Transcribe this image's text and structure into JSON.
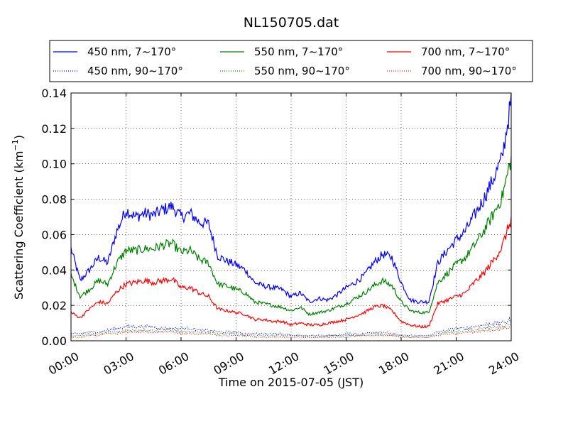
{
  "chart_data": {
    "type": "line",
    "title": "NL150705.dat",
    "xlabel": "Time on 2015-07-05 (JST)",
    "ylabel_main": "Scattering Coefficient (km",
    "ylabel_sup": "−1",
    "ylabel_end": ")",
    "xlim": [
      0,
      24
    ],
    "ylim": [
      0,
      0.14
    ],
    "grid": true,
    "legend_position": "top",
    "x_ticks": [
      0,
      3,
      6,
      9,
      12,
      15,
      18,
      21,
      24
    ],
    "x_tick_labels": [
      "00:00",
      "03:00",
      "06:00",
      "09:00",
      "12:00",
      "15:00",
      "18:00",
      "21:00",
      "24:00"
    ],
    "y_ticks": [
      0,
      0.02,
      0.04,
      0.06,
      0.08,
      0.1,
      0.12,
      0.14
    ],
    "y_tick_labels": [
      "0.00",
      "0.02",
      "0.04",
      "0.06",
      "0.08",
      "0.10",
      "0.12",
      "0.14"
    ],
    "x": [
      0.0,
      0.5,
      1.0,
      1.5,
      2.0,
      2.5,
      3.0,
      3.5,
      4.0,
      4.5,
      5.0,
      5.5,
      6.0,
      6.5,
      7.0,
      7.5,
      8.0,
      8.5,
      9.0,
      9.5,
      10.0,
      10.5,
      11.0,
      11.5,
      12.0,
      12.5,
      13.0,
      13.5,
      14.0,
      14.5,
      15.0,
      15.5,
      16.0,
      16.5,
      17.0,
      17.5,
      18.0,
      18.5,
      19.0,
      19.5,
      20.0,
      20.5,
      21.0,
      21.5,
      22.0,
      22.5,
      23.0,
      23.5,
      24.0
    ],
    "series": [
      {
        "name": "450 nm, 7∼170°",
        "color": "#0000ff",
        "dash": "solid",
        "values": [
          0.052,
          0.034,
          0.04,
          0.047,
          0.044,
          0.062,
          0.074,
          0.07,
          0.072,
          0.071,
          0.074,
          0.076,
          0.07,
          0.072,
          0.067,
          0.066,
          0.048,
          0.045,
          0.043,
          0.04,
          0.033,
          0.031,
          0.03,
          0.029,
          0.025,
          0.027,
          0.022,
          0.024,
          0.023,
          0.026,
          0.03,
          0.033,
          0.037,
          0.044,
          0.049,
          0.047,
          0.033,
          0.023,
          0.022,
          0.022,
          0.044,
          0.051,
          0.057,
          0.062,
          0.071,
          0.08,
          0.091,
          0.103,
          0.136
        ]
      },
      {
        "name": "550 nm, 7∼170°",
        "color": "#008000",
        "dash": "solid",
        "values": [
          0.037,
          0.025,
          0.029,
          0.034,
          0.032,
          0.044,
          0.051,
          0.051,
          0.052,
          0.052,
          0.054,
          0.055,
          0.05,
          0.051,
          0.046,
          0.044,
          0.032,
          0.031,
          0.029,
          0.027,
          0.022,
          0.021,
          0.02,
          0.019,
          0.017,
          0.019,
          0.015,
          0.016,
          0.017,
          0.019,
          0.021,
          0.024,
          0.027,
          0.031,
          0.034,
          0.031,
          0.022,
          0.017,
          0.016,
          0.016,
          0.033,
          0.038,
          0.043,
          0.047,
          0.054,
          0.062,
          0.071,
          0.081,
          0.103
        ]
      },
      {
        "name": "700 nm, 7∼170°",
        "color": "#ff0000",
        "dash": "solid",
        "values": [
          0.016,
          0.013,
          0.018,
          0.022,
          0.021,
          0.028,
          0.032,
          0.033,
          0.034,
          0.033,
          0.034,
          0.035,
          0.03,
          0.03,
          0.027,
          0.025,
          0.018,
          0.017,
          0.016,
          0.015,
          0.012,
          0.012,
          0.011,
          0.011,
          0.009,
          0.01,
          0.009,
          0.009,
          0.01,
          0.011,
          0.012,
          0.014,
          0.016,
          0.019,
          0.02,
          0.017,
          0.011,
          0.009,
          0.008,
          0.008,
          0.021,
          0.023,
          0.025,
          0.027,
          0.033,
          0.038,
          0.045,
          0.053,
          0.069
        ]
      },
      {
        "name": "450 nm, 90∼170°",
        "color": "#0000ff",
        "dash": "dotted",
        "values": [
          0.004,
          0.004,
          0.005,
          0.005,
          0.006,
          0.007,
          0.008,
          0.008,
          0.008,
          0.008,
          0.007,
          0.007,
          0.007,
          0.007,
          0.006,
          0.006,
          0.005,
          0.005,
          0.005,
          0.004,
          0.004,
          0.004,
          0.004,
          0.004,
          0.003,
          0.003,
          0.003,
          0.003,
          0.003,
          0.003,
          0.004,
          0.004,
          0.004,
          0.005,
          0.005,
          0.004,
          0.003,
          0.003,
          0.003,
          0.003,
          0.005,
          0.006,
          0.007,
          0.007,
          0.008,
          0.009,
          0.01,
          0.01,
          0.012
        ]
      },
      {
        "name": "550 nm, 90∼170°",
        "color": "#008000",
        "dash": "dotted",
        "values": [
          0.003,
          0.003,
          0.004,
          0.004,
          0.005,
          0.005,
          0.006,
          0.006,
          0.006,
          0.006,
          0.006,
          0.006,
          0.005,
          0.005,
          0.005,
          0.005,
          0.004,
          0.004,
          0.004,
          0.003,
          0.003,
          0.003,
          0.003,
          0.003,
          0.003,
          0.003,
          0.002,
          0.002,
          0.003,
          0.003,
          0.003,
          0.003,
          0.003,
          0.004,
          0.004,
          0.003,
          0.003,
          0.002,
          0.002,
          0.002,
          0.004,
          0.005,
          0.005,
          0.006,
          0.006,
          0.007,
          0.008,
          0.008,
          0.01
        ]
      },
      {
        "name": "700 nm, 90∼170°",
        "color": "#ff0000",
        "dash": "dotted",
        "values": [
          0.002,
          0.002,
          0.003,
          0.003,
          0.004,
          0.004,
          0.005,
          0.005,
          0.005,
          0.005,
          0.005,
          0.005,
          0.004,
          0.004,
          0.004,
          0.004,
          0.003,
          0.003,
          0.003,
          0.003,
          0.002,
          0.002,
          0.002,
          0.002,
          0.002,
          0.002,
          0.002,
          0.002,
          0.002,
          0.002,
          0.002,
          0.003,
          0.003,
          0.003,
          0.003,
          0.003,
          0.002,
          0.002,
          0.002,
          0.002,
          0.003,
          0.004,
          0.004,
          0.005,
          0.005,
          0.006,
          0.006,
          0.007,
          0.008
        ]
      }
    ]
  }
}
